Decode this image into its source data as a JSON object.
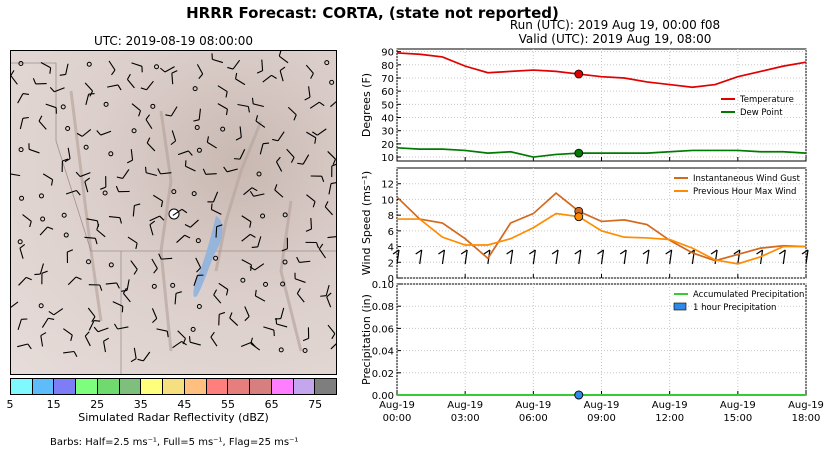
{
  "title": "HRRR Forecast: CORTA, (state not reported)",
  "run_line": "Run (UTC): 2019 Aug 19, 00:00 f08",
  "valid_line": "Valid (UTC): 2019 Aug 19, 08:00",
  "map": {
    "title": "UTC: 2019-08-19 08:00:00"
  },
  "colorbar": {
    "label": "Simulated Radar Reflectivity (dBZ)",
    "ticks": [
      "5",
      "15",
      "25",
      "35",
      "45",
      "55",
      "65",
      "75"
    ],
    "colors": [
      "#7ff8ff",
      "#5dbcf9",
      "#7d7ef7",
      "#7dff7d",
      "#6fdb6f",
      "#7ebf7e",
      "#ffff7e",
      "#f5df7e",
      "#ffbf7e",
      "#ff7e7e",
      "#e67e7e",
      "#d77e7e",
      "#ff7eff",
      "#c3a6ee",
      "#7e7e7e"
    ]
  },
  "barbs_note": "Barbs: Half=2.5 ms⁻¹, Full=5 ms⁻¹, Flag=25 ms⁻¹",
  "chart_data": [
    {
      "type": "line",
      "ylabel": "Degrees (F)",
      "ylim": [
        7,
        92
      ],
      "yticks": [
        10,
        20,
        30,
        40,
        50,
        60,
        70,
        80,
        90
      ],
      "grid": true,
      "legend_position": "right",
      "x_hours": [
        0,
        1,
        2,
        3,
        4,
        5,
        6,
        7,
        8,
        9,
        10,
        11,
        12,
        13,
        14,
        15,
        16,
        17,
        18
      ],
      "xticks": [
        {
          "hour": 0,
          "label": [
            "Aug-19",
            "00:00"
          ]
        },
        {
          "hour": 3,
          "label": [
            "Aug-19",
            "03:00"
          ]
        },
        {
          "hour": 6,
          "label": [
            "Aug-19",
            "06:00"
          ]
        },
        {
          "hour": 9,
          "label": [
            "Aug-19",
            "09:00"
          ]
        },
        {
          "hour": 12,
          "label": [
            "Aug-19",
            "12:00"
          ]
        },
        {
          "hour": 15,
          "label": [
            "Aug-19",
            "15:00"
          ]
        },
        {
          "hour": 18,
          "label": [
            "Aug-19",
            "18:00"
          ]
        }
      ],
      "series": [
        {
          "name": "Temperature",
          "color": "#e00000",
          "values": [
            89,
            88,
            86,
            79,
            74,
            75,
            76,
            75,
            73,
            71,
            70,
            67,
            65,
            63,
            65,
            71,
            75,
            79,
            82
          ]
        },
        {
          "name": "Dew Point",
          "color": "#007a00",
          "values": [
            17,
            16,
            16,
            15,
            13,
            14,
            10,
            12,
            13,
            13,
            13,
            13,
            14,
            15,
            15,
            15,
            14,
            14,
            13
          ]
        }
      ],
      "marker_hour": 8
    },
    {
      "type": "line",
      "ylabel": "Wind Speed (ms⁻¹)",
      "ylim": [
        0,
        14
      ],
      "yticks": [
        0,
        2,
        4,
        6,
        8,
        10,
        12
      ],
      "grid": true,
      "legend_position": "top-right",
      "x_hours": [
        0,
        1,
        2,
        3,
        4,
        5,
        6,
        7,
        8,
        9,
        10,
        11,
        12,
        13,
        14,
        15,
        16,
        17,
        18
      ],
      "series": [
        {
          "name": "Instantaneous Wind Gust",
          "color": "#d2691e",
          "values": [
            10.3,
            7.5,
            7.0,
            5.0,
            2.5,
            7.0,
            8.2,
            10.8,
            8.5,
            7.2,
            7.4,
            6.8,
            4.8,
            3.2,
            2.2,
            3.0,
            3.8,
            4.1,
            4.0
          ]
        },
        {
          "name": "Previous Hour Max Wind",
          "color": "#ff8c00",
          "values": [
            7.5,
            7.5,
            5.2,
            4.2,
            4.2,
            5.0,
            6.4,
            8.2,
            7.8,
            6.0,
            5.2,
            5.1,
            4.9,
            3.8,
            2.3,
            1.8,
            2.7,
            4.0,
            4.0
          ]
        }
      ],
      "barb_hours": [
        0,
        1,
        2,
        3,
        4,
        5,
        6,
        7,
        8,
        9,
        10,
        11,
        12,
        13,
        14,
        15,
        16,
        17,
        18
      ],
      "marker_hour": 8
    },
    {
      "type": "bar",
      "ylabel": "Precipitation (in)",
      "ylim": [
        0,
        0.1
      ],
      "yticks": [
        "0.00",
        "0.02",
        "0.04",
        "0.06",
        "0.08",
        "0.10"
      ],
      "grid": true,
      "legend_position": "top-right",
      "x_hours": [
        0,
        1,
        2,
        3,
        4,
        5,
        6,
        7,
        8,
        9,
        10,
        11,
        12,
        13,
        14,
        15,
        16,
        17,
        18
      ],
      "series": [
        {
          "name": "Accumulated Precipitation",
          "color": "#33cc33",
          "values": [
            0,
            0,
            0,
            0,
            0,
            0,
            0,
            0,
            0,
            0,
            0,
            0,
            0,
            0,
            0,
            0,
            0,
            0,
            0
          ]
        },
        {
          "name": "1 hour Precipitation",
          "color": "#2e8ae6",
          "values": [
            0,
            0,
            0,
            0,
            0,
            0,
            0,
            0,
            0,
            0,
            0,
            0,
            0,
            0,
            0,
            0,
            0,
            0,
            0
          ]
        }
      ],
      "marker_hour": 8
    }
  ]
}
